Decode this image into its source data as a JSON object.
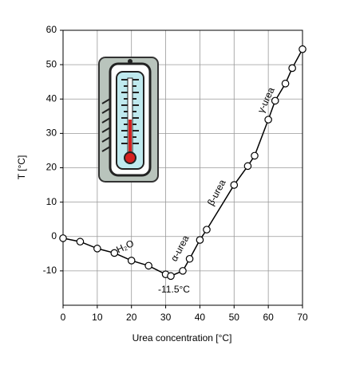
{
  "chart_data": {
    "type": "line",
    "x_label": "Urea concentration [°C]",
    "y_label": "T [°C]",
    "x": [
      0,
      5,
      10,
      15,
      20,
      25,
      30,
      31.5,
      35,
      37,
      40,
      42,
      50,
      54,
      56,
      60,
      62,
      65,
      67,
      70
    ],
    "values": [
      -0.5,
      -1.5,
      -3.5,
      -4.8,
      -7,
      -8.5,
      -11,
      -11.5,
      -10,
      -6.5,
      -1,
      2,
      15,
      20.5,
      23.5,
      34,
      39.5,
      44.5,
      49,
      54.5
    ],
    "color": "#000000",
    "xlim": [
      0,
      70
    ],
    "xticks": [
      0,
      10,
      20,
      30,
      40,
      50,
      60,
      70
    ],
    "ylim": [
      -20,
      60
    ],
    "yticks": [
      -10,
      0,
      10,
      20,
      30,
      40,
      50,
      60
    ],
    "grid": true,
    "annotations": [
      "H₂O",
      "α-urea",
      "β-urea",
      "γ-urea",
      "-11.5°C"
    ]
  }
}
